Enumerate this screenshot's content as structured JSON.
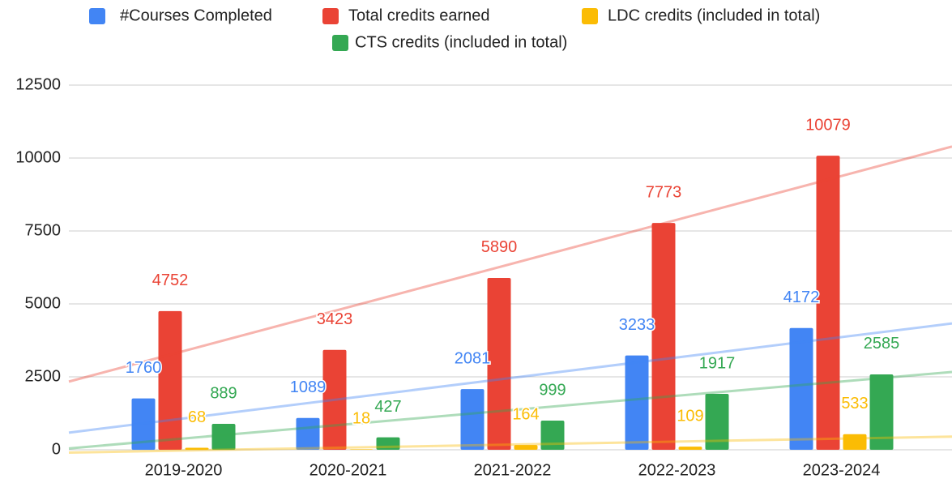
{
  "chart_data": {
    "type": "bar",
    "categories": [
      "2019-2020",
      "2020-2021",
      "2021-2022",
      "2022-2023",
      "2023-2024"
    ],
    "series": [
      {
        "name": "#Courses Completed",
        "color": "#4285f4",
        "values": [
          1760,
          1089,
          2081,
          3233,
          4172
        ]
      },
      {
        "name": "Total credits earned",
        "color": "#ea4335",
        "values": [
          4752,
          3423,
          5890,
          7773,
          10079
        ]
      },
      {
        "name": "LDC credits (included in total)",
        "color": "#fbbc04",
        "values": [
          68,
          18,
          164,
          109,
          533
        ]
      },
      {
        "name": "CTS credits (included in total)",
        "color": "#34a853",
        "values": [
          889,
          427,
          999,
          1917,
          2585
        ]
      }
    ],
    "ylim": [
      0,
      12500
    ],
    "yticks": [
      0,
      2500,
      5000,
      7500,
      10000,
      12500
    ],
    "grid": true,
    "trendline": true,
    "legend": "top",
    "data_labels": true
  }
}
